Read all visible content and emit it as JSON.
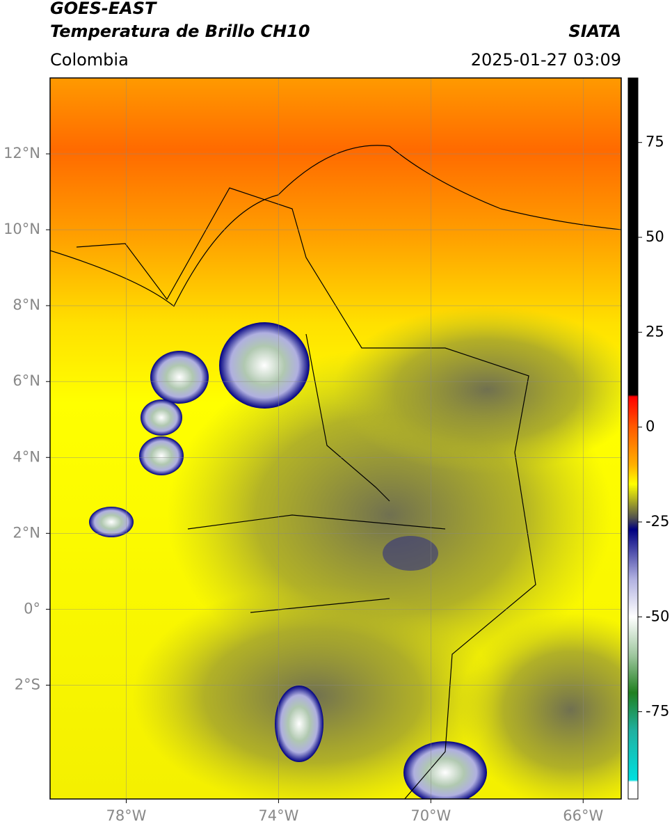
{
  "header": {
    "title": "GOES-EAST",
    "subtitle": "Temperatura de Brillo CH10",
    "source": "SIATA",
    "region": "Colombia",
    "datetime": "2025-01-27 03:09"
  },
  "map": {
    "xlim": [
      -80,
      -65
    ],
    "ylim": [
      -5,
      14
    ],
    "xticks": [
      {
        "value": -78,
        "label": "78°W"
      },
      {
        "value": -74,
        "label": "74°W"
      },
      {
        "value": -70,
        "label": "70°W"
      },
      {
        "value": -66,
        "label": "66°W"
      }
    ],
    "yticks": [
      {
        "value": 12,
        "label": "12°N"
      },
      {
        "value": 10,
        "label": "10°N"
      },
      {
        "value": 8,
        "label": "8°N"
      },
      {
        "value": 6,
        "label": "6°N"
      },
      {
        "value": 4,
        "label": "4°N"
      },
      {
        "value": 2,
        "label": "2°N"
      },
      {
        "value": 0,
        "label": "0°"
      },
      {
        "value": -2,
        "label": "2°S"
      }
    ],
    "grid": true
  },
  "colorbar": {
    "lim": [
      -98,
      92
    ],
    "ticks": [
      75,
      50,
      25,
      0,
      -25,
      -50,
      -75
    ],
    "stops": [
      {
        "value": 92,
        "color": "#000000"
      },
      {
        "value": 8.5,
        "color": "#000000"
      },
      {
        "value": 8,
        "color": "#ff0000"
      },
      {
        "value": 0,
        "color": "#ff5a00"
      },
      {
        "value": -10,
        "color": "#ffb000"
      },
      {
        "value": -15,
        "color": "#ffff00"
      },
      {
        "value": -20,
        "color": "#a0a028"
      },
      {
        "value": -24,
        "color": "#505050"
      },
      {
        "value": -27,
        "color": "#000080"
      },
      {
        "value": -40,
        "color": "#b0b0e0"
      },
      {
        "value": -50,
        "color": "#ffffff"
      },
      {
        "value": -60,
        "color": "#a0c8a0"
      },
      {
        "value": -70,
        "color": "#208020"
      },
      {
        "value": -80,
        "color": "#20b0a0"
      },
      {
        "value": -93,
        "color": "#00e0e0"
      },
      {
        "value": -93.5,
        "color": "#ffffff"
      },
      {
        "value": -98,
        "color": "#ffffff"
      }
    ]
  }
}
